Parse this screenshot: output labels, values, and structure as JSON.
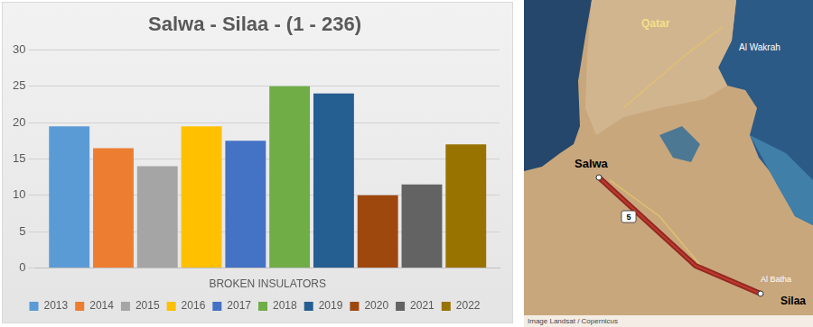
{
  "chart_data": {
    "type": "bar",
    "title": "Salwa - Silaa - (1 - 236)",
    "categories": [
      "BROKEN INSULATORS"
    ],
    "series": [
      {
        "name": "2013",
        "color": "#5b9bd5",
        "values": [
          19.5
        ]
      },
      {
        "name": "2014",
        "color": "#ed7d31",
        "values": [
          16.5
        ]
      },
      {
        "name": "2015",
        "color": "#a5a5a5",
        "values": [
          14
        ]
      },
      {
        "name": "2016",
        "color": "#ffc000",
        "values": [
          19.5
        ]
      },
      {
        "name": "2017",
        "color": "#4472c4",
        "values": [
          17.5
        ]
      },
      {
        "name": "2018",
        "color": "#70ad47",
        "values": [
          25
        ]
      },
      {
        "name": "2019",
        "color": "#255e91",
        "values": [
          24
        ]
      },
      {
        "name": "2020",
        "color": "#9e480e",
        "values": [
          10
        ]
      },
      {
        "name": "2021",
        "color": "#636363",
        "values": [
          11.5
        ]
      },
      {
        "name": "2022",
        "color": "#997300",
        "values": [
          17
        ]
      }
    ],
    "ylim": [
      0,
      30
    ],
    "yticks": [
      0,
      5,
      10,
      15,
      20,
      25,
      30
    ],
    "grid": true,
    "legend": "bottom"
  },
  "map": {
    "labels": [
      "Qatar",
      "Al Wakrah",
      "Salwa",
      "Silaa",
      "Al Batha",
      "5",
      "Image Landsat / Copernicus"
    ]
  }
}
